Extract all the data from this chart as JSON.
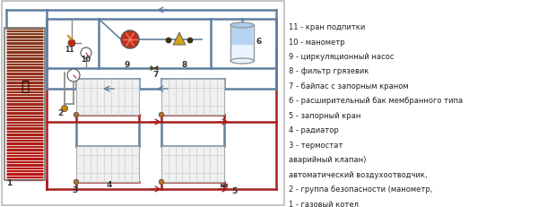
{
  "bg_color": "#ffffff",
  "pipe_hot_color": "#a52020",
  "pipe_cold_color": "#6080a0",
  "boiler_grad_top": "#cc3333",
  "boiler_grad_bot": "#880000",
  "radiator_color": "#f0f0f0",
  "radiator_border": "#bbbbbb",
  "tank_color": "#d0e8f8",
  "legend_items": [
    "1 - газовый котел",
    "2 - группа безопасности (манометр,",
    "автоматический воздухоотводчик,",
    "аварийный клапан)",
    "3 - термостат",
    "4 - радиатор",
    "5 - запорный кран",
    "6 - расширительный бак мембранного типа",
    "7 - байпас с запорным краном",
    "8 - фильтр грязевик",
    "9 - циркуляционный насос",
    "10 - манометр",
    "11 - кран подпитки"
  ]
}
